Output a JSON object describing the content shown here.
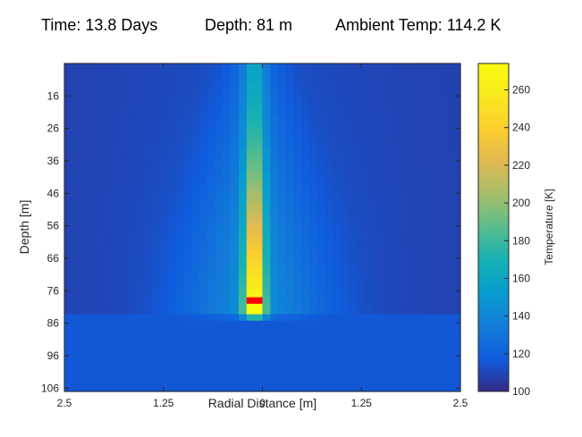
{
  "title_parts": {
    "time": "Time: 13.8 Days",
    "depth": "Depth: 81 m",
    "ambient": "Ambient Temp: 114.2 K"
  },
  "chart_data": {
    "type": "heatmap",
    "xlabel": "Radial Distance [m]",
    "ylabel": "Depth [m]",
    "colorbar_label": "Temperature [K]",
    "x_tick_labels": [
      "2.5",
      "1.25",
      "0",
      "1.25",
      "2.5"
    ],
    "x_tick_values": [
      -2.5,
      -1.25,
      0,
      1.25,
      2.5
    ],
    "xlim": [
      -2.5,
      2.5
    ],
    "y_tick_labels": [
      "16",
      "26",
      "36",
      "46",
      "56",
      "66",
      "76",
      "86",
      "96",
      "106"
    ],
    "y_tick_values": [
      16,
      26,
      36,
      46,
      56,
      66,
      76,
      86,
      96,
      106
    ],
    "ylim": [
      6,
      107
    ],
    "colorbar_ticks": [
      100,
      120,
      140,
      160,
      180,
      200,
      220,
      240,
      260
    ],
    "clim": [
      100,
      274
    ],
    "colormap": "parula",
    "ambient_temp": 114.2,
    "probe_depth": 81,
    "heated_column": {
      "x_center": -0.1,
      "top_depth": 6,
      "bottom_depth": 83,
      "peak_temp": 274
    },
    "marker": {
      "x_center": -0.1,
      "depth": 79,
      "color": "#ff0000"
    },
    "grid": false
  }
}
